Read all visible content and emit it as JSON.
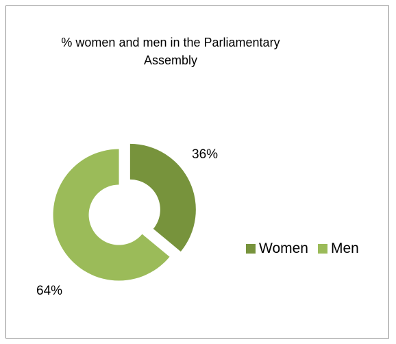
{
  "chart_data": {
    "type": "pie",
    "title": "% women and men in the Parliamentary Assembly",
    "categories": [
      "Women",
      "Men"
    ],
    "values": [
      36,
      64
    ],
    "unit": "%",
    "data_labels": [
      "36%",
      "64%"
    ],
    "donut": true,
    "exploded": true,
    "colors": [
      "#77933c",
      "#9bbb59"
    ],
    "legend": {
      "position": "right",
      "entries": [
        "Women",
        "Men"
      ]
    }
  }
}
